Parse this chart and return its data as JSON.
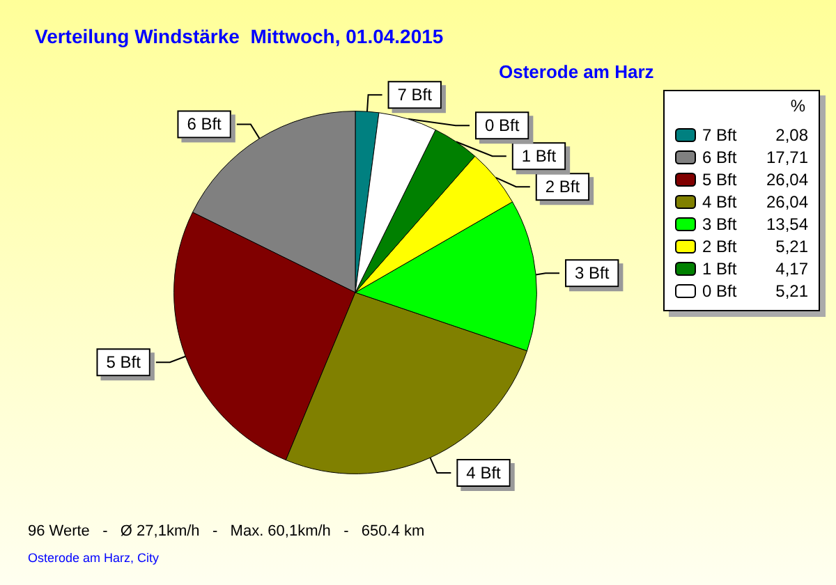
{
  "chart_data": {
    "type": "pie",
    "title": "Verteilung Windstärke  Mittwoch, 01.04.2015",
    "subtitle": "Osterode am Harz",
    "legend_title": "%",
    "categories": [
      "7 Bft",
      "6 Bft",
      "5 Bft",
      "4 Bft",
      "3 Bft",
      "2 Bft",
      "1 Bft",
      "0 Bft"
    ],
    "values": [
      2.08,
      17.71,
      26.04,
      26.04,
      13.54,
      5.21,
      4.17,
      5.21
    ],
    "value_labels": [
      "2,08",
      "17,71",
      "26,04",
      "26,04",
      "13,54",
      "5,21",
      "4,17",
      "5,21"
    ],
    "colors": [
      "#008080",
      "#808080",
      "#800000",
      "#808000",
      "#00ff00",
      "#ffff00",
      "#008000",
      "#ffffff"
    ],
    "legend": "right",
    "annotations": [
      "96 Werte   -   Ø 27,1km/h   -   Max. 60,1km/h   -   650.4 km",
      "Osterode am Harz, City"
    ]
  }
}
